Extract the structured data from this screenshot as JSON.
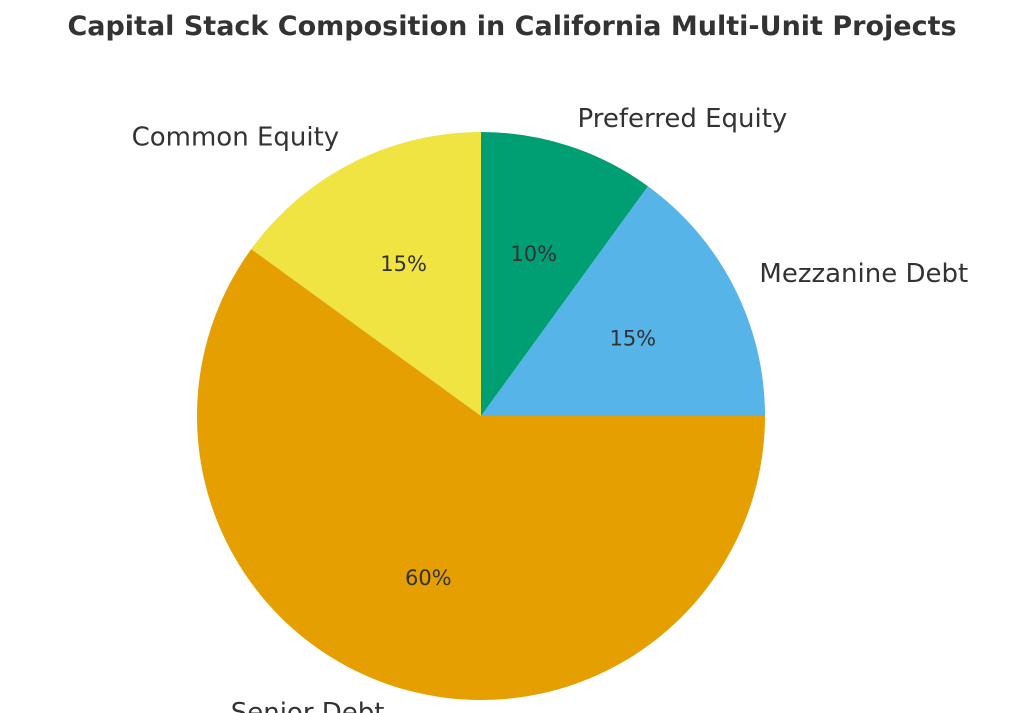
{
  "chart_data": {
    "type": "pie",
    "title": "Capital Stack Composition in California Multi-Unit Projects",
    "start_angle": "90 (top), counter-clockwise",
    "slices": [
      {
        "label": "Common Equity",
        "value": 15,
        "pct_label": "15%",
        "color": "#F0E442"
      },
      {
        "label": "Senior Debt",
        "value": 60,
        "pct_label": "60%",
        "color": "#E69F00"
      },
      {
        "label": "Mezzanine Debt",
        "value": 15,
        "pct_label": "15%",
        "color": "#56B4E9"
      },
      {
        "label": "Preferred Equity",
        "value": 10,
        "pct_label": "10%",
        "color": "#009E73"
      }
    ]
  }
}
